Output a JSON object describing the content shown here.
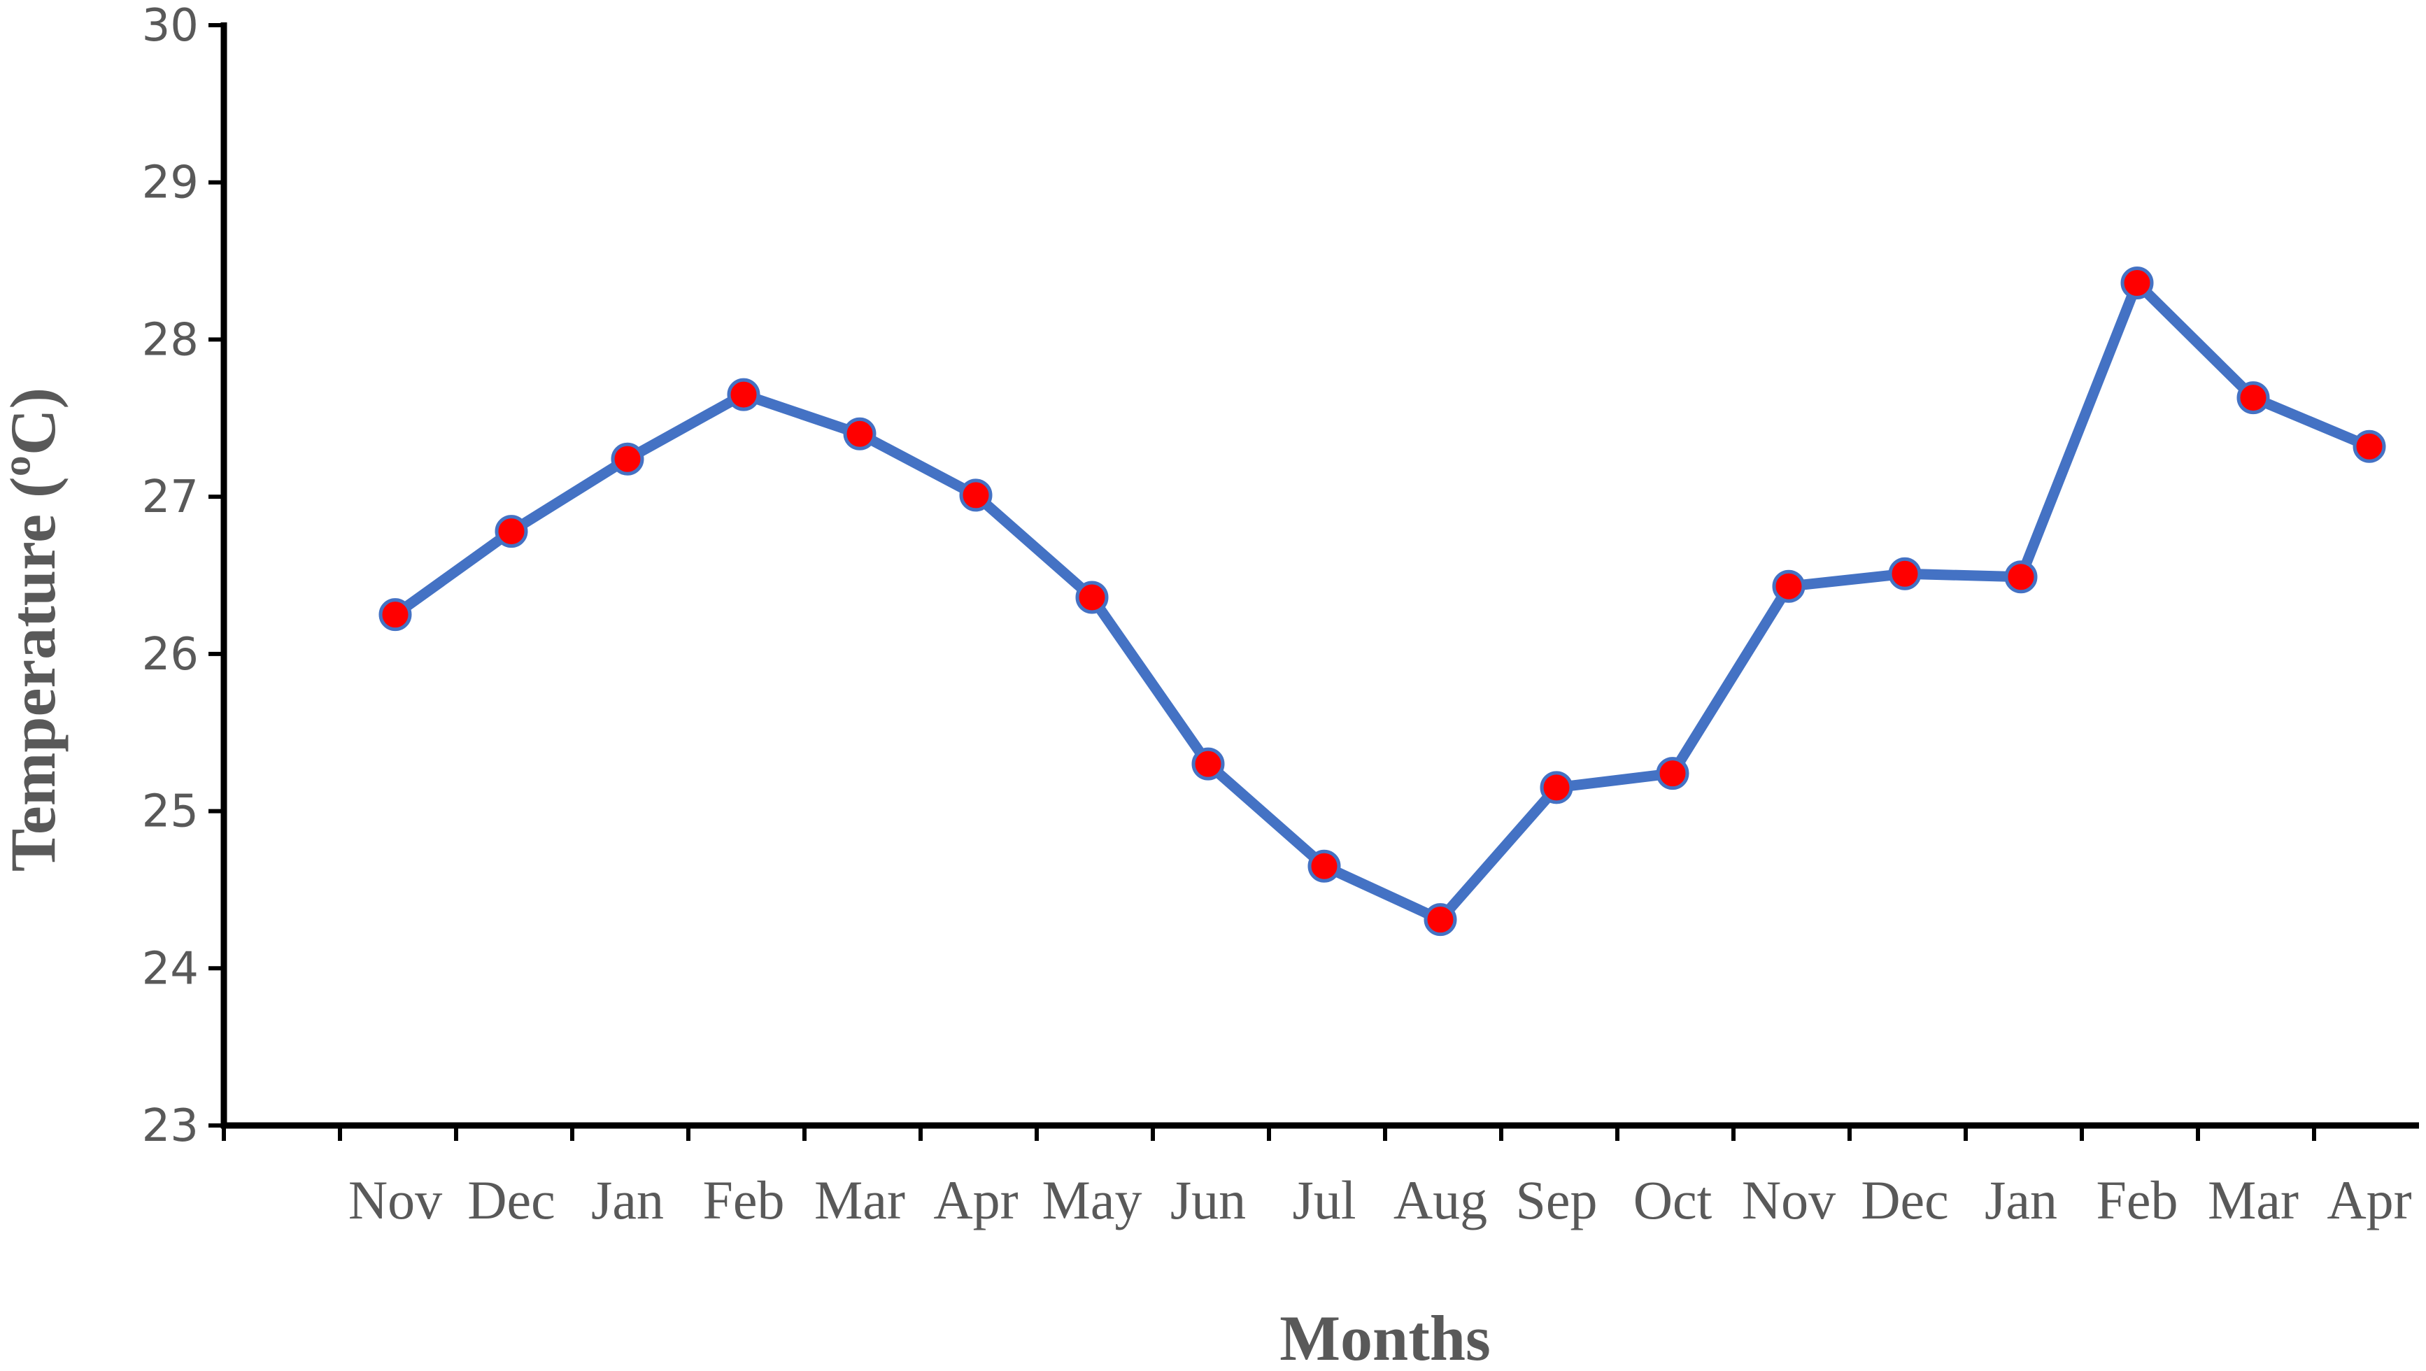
{
  "chart_data": {
    "type": "line",
    "title": "",
    "xlabel": "Months",
    "ylabel": "Temperature (ºC)",
    "ylim": [
      23,
      30
    ],
    "yticks": [
      23,
      24,
      25,
      26,
      27,
      28,
      29,
      30
    ],
    "categories": [
      "Nov",
      "Dec",
      "Jan",
      "Feb",
      "Mar",
      "Apr",
      "May",
      "Jun",
      "Jul",
      "Aug",
      "Sep",
      "Oct",
      "Nov",
      "Dec",
      "Jan",
      "Feb",
      "Mar",
      "Apr"
    ],
    "series": [
      {
        "values": [
          26.25,
          26.78,
          27.24,
          27.65,
          27.4,
          27.01,
          26.36,
          25.3,
          24.65,
          24.31,
          25.15,
          25.24,
          26.43,
          26.51,
          26.49,
          28.36,
          27.63,
          27.32
        ],
        "line_color": "#4472C4",
        "marker_color": "#FF0000"
      }
    ],
    "grid": false,
    "legend": "none"
  }
}
